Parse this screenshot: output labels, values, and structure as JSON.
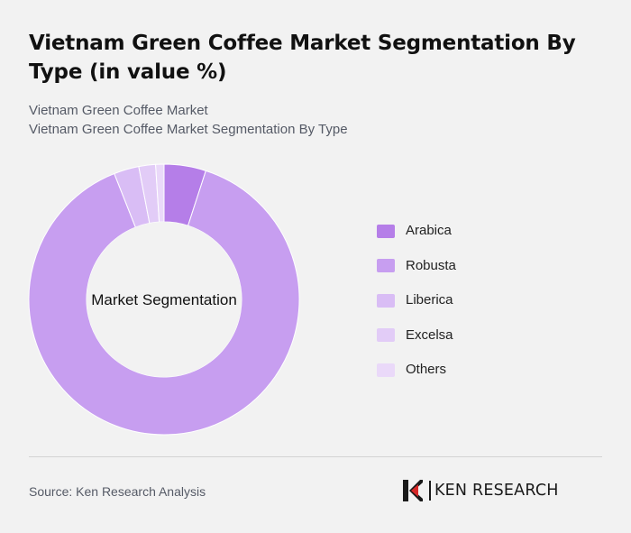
{
  "title": "Vietnam Green Coffee Market Segmentation By Type (in value %)",
  "breadcrumb": {
    "line1": "Vietnam Green Coffee Market",
    "line2": "Vietnam Green Coffee Market Segmentation By Type"
  },
  "chart_data": {
    "type": "pie",
    "variant": "donut",
    "center_label": "Market Segmentation",
    "categories": [
      "Arabica",
      "Robusta",
      "Liberica",
      "Excelsa",
      "Others"
    ],
    "values": [
      5,
      89,
      3,
      2,
      1
    ],
    "colors": [
      "#b57ee8",
      "#c79ef0",
      "#d9bdf5",
      "#e2ccf7",
      "#ead9f9"
    ],
    "center_fill": "#f2f2f2",
    "legend_position": "right"
  },
  "footer": {
    "source": "Source: Ken Research Analysis",
    "logo_text": "KEN RESEARCH"
  }
}
